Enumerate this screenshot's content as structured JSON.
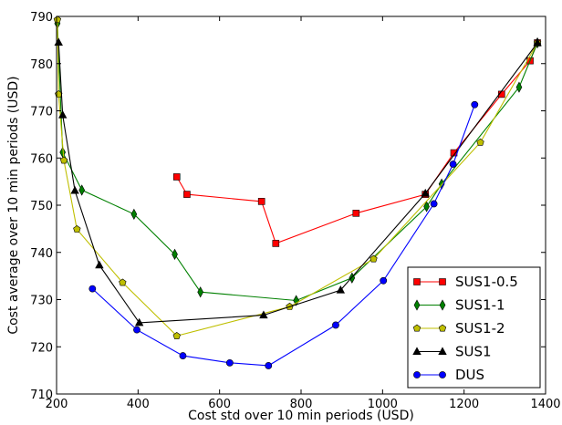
{
  "chart_data": {
    "type": "line",
    "title": "",
    "xlabel": "Cost std over 10 min periods (USD)",
    "ylabel": "Cost average over 10 min periods (USD)",
    "xlim": [
      200,
      1400
    ],
    "ylim": [
      710,
      790
    ],
    "xticks": [
      200,
      400,
      600,
      800,
      1000,
      1200,
      1400
    ],
    "yticks": [
      710,
      720,
      730,
      740,
      750,
      760,
      770,
      780,
      790
    ],
    "grid": false,
    "legend_position": "lower-right",
    "series": [
      {
        "name": "SUS1-0.5",
        "color": "#ff0000",
        "marker": "square",
        "points": [
          [
            495,
            756
          ],
          [
            520,
            752.3
          ],
          [
            703,
            750.8
          ],
          [
            738,
            741.9
          ],
          [
            935,
            748.3
          ],
          [
            1105,
            752.3
          ],
          [
            1175,
            761.1
          ],
          [
            1292,
            773.5
          ],
          [
            1362,
            780.6
          ],
          [
            1380,
            784.4
          ]
        ]
      },
      {
        "name": "SUS1-1",
        "color": "#008000",
        "marker": "diamond",
        "points": [
          [
            202,
            788.5
          ],
          [
            215,
            761.2
          ],
          [
            262,
            753.2
          ],
          [
            390,
            748.1
          ],
          [
            490,
            739.6
          ],
          [
            553,
            731.6
          ],
          [
            788,
            729.8
          ],
          [
            925,
            734.6
          ],
          [
            1108,
            749.7
          ],
          [
            1145,
            754.5
          ],
          [
            1335,
            775
          ],
          [
            1380,
            784.4
          ]
        ]
      },
      {
        "name": "SUS1-2",
        "color": "#bfbf00",
        "marker": "pentagon",
        "points": [
          [
            202,
            789.3
          ],
          [
            205,
            773.5
          ],
          [
            218,
            759.5
          ],
          [
            250,
            744.9
          ],
          [
            362,
            733.6
          ],
          [
            495,
            722.3
          ],
          [
            772,
            728.5
          ],
          [
            978,
            738.6
          ],
          [
            1240,
            763.3
          ],
          [
            1380,
            784.4
          ]
        ]
      },
      {
        "name": "SUS1",
        "color": "#000000",
        "marker": "triangle",
        "points": [
          [
            205,
            784.5
          ],
          [
            215,
            769.1
          ],
          [
            245,
            753.1
          ],
          [
            305,
            737.3
          ],
          [
            403,
            725.1
          ],
          [
            708,
            726.7
          ],
          [
            897,
            732.0
          ],
          [
            1105,
            752.5
          ],
          [
            1380,
            784.4
          ]
        ]
      },
      {
        "name": "DUS",
        "color": "#0000ff",
        "marker": "circle",
        "points": [
          [
            288,
            732.3
          ],
          [
            397,
            723.6
          ],
          [
            510,
            718.1
          ],
          [
            625,
            716.6
          ],
          [
            720,
            716
          ],
          [
            885,
            724.6
          ],
          [
            1002,
            734
          ],
          [
            1126,
            750.3
          ],
          [
            1173,
            758.7
          ],
          [
            1226,
            771.3
          ]
        ]
      }
    ]
  }
}
